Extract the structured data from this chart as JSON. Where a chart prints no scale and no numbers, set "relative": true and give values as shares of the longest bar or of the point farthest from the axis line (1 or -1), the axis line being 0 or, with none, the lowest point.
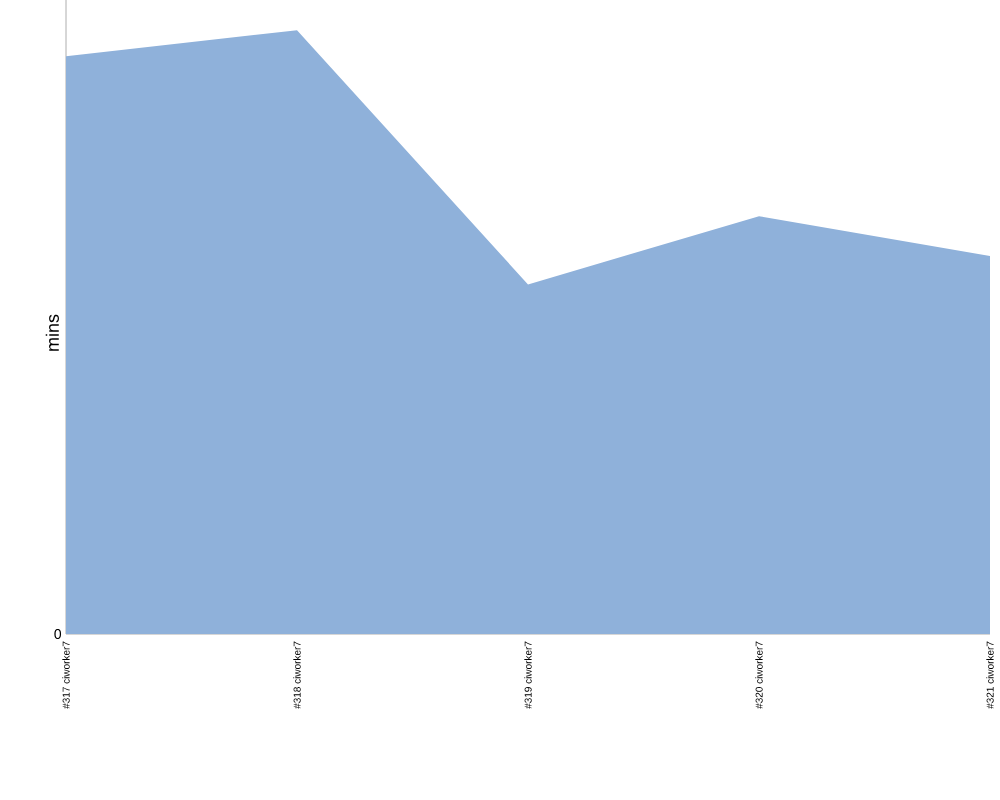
{
  "chart_data": {
    "type": "area",
    "ylabel": "mins",
    "relative": true,
    "categories": [
      "#317 ciworker7",
      "#318 ciworker7",
      "#319 ciworker7",
      "#320 ciworker7",
      "#321 ciworker7"
    ],
    "series": [
      {
        "color": "#8fb1da",
        "values": [
          0.957,
          1,
          0.579,
          0.692,
          0.626
        ]
      }
    ],
    "annotations": [
      {
        "text": "0",
        "y": 0
      }
    ]
  }
}
